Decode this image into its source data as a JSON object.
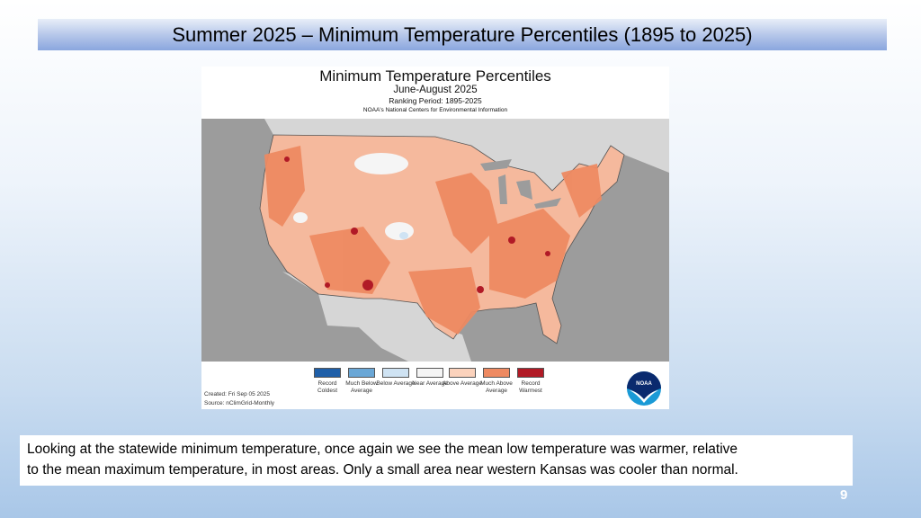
{
  "slide": {
    "title": "Summer 2025 – Minimum Temperature Percentiles (1895 to 2025)",
    "caption_line1": "Looking at the statewide minimum temperature, once again we see the mean low temperature was warmer, relative",
    "caption_line2": "to the mean maximum temperature, in most areas.  Only a small area near western Kansas was cooler than normal.",
    "page_number": "9"
  },
  "figure": {
    "title": "Minimum Temperature Percentiles",
    "subtitle": "June-August 2025",
    "ranking_period": "Ranking Period: 1895-2025",
    "source_org": "NOAA's National Centers for Environmental Information",
    "created": "Created: Fri Sep 05 2025",
    "source": "Source: nClimGrid-Monthly",
    "logo_text": "NOAA",
    "legend": [
      {
        "label": "Record Coldest",
        "color": "#1f5fa8"
      },
      {
        "label": "Much Below Average",
        "color": "#6aa7d6"
      },
      {
        "label": "Below Average",
        "color": "#cfe3f3"
      },
      {
        "label": "Near Average",
        "color": "#f5f5f5"
      },
      {
        "label": "Above Average",
        "color": "#fbd2bc"
      },
      {
        "label": "Much Above Average",
        "color": "#ee8a62"
      },
      {
        "label": "Record Warmest",
        "color": "#b11a26"
      }
    ]
  }
}
